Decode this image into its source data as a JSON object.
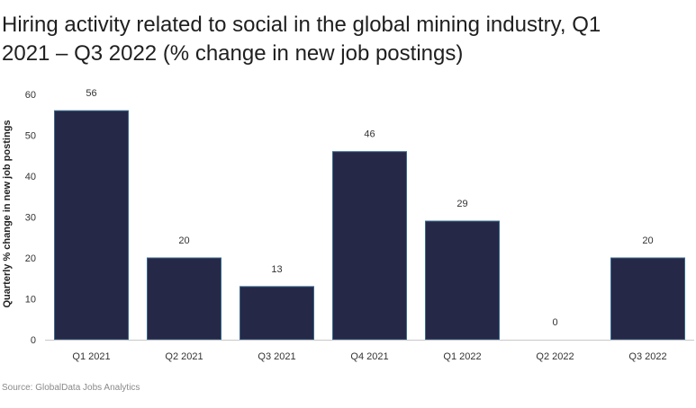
{
  "title": "Hiring activity related to social in the global mining industry, Q1 2021 – Q3 2022 (% change in new job postings)",
  "source": "Source: GlobalData Jobs Analytics",
  "colors": {
    "bar": "#262848",
    "bar_stroke": "#3a6a8a",
    "axis": "#c8c8c8"
  },
  "chart_data": {
    "type": "bar",
    "title": "Hiring activity related to social in the global mining industry, Q1 2021 – Q3 2022 (% change in new job postings)",
    "xlabel": "",
    "ylabel": "Quarterly % change in new job postings",
    "categories": [
      "Q1 2021",
      "Q2 2021",
      "Q3 2021",
      "Q4 2021",
      "Q1 2022",
      "Q2 2022",
      "Q3 2022"
    ],
    "values": [
      56,
      20,
      13,
      46,
      29,
      0,
      20
    ],
    "ylim": [
      0,
      60
    ],
    "yticks": [
      0,
      10,
      20,
      30,
      40,
      50,
      60
    ],
    "grid": false,
    "legend": "none"
  }
}
